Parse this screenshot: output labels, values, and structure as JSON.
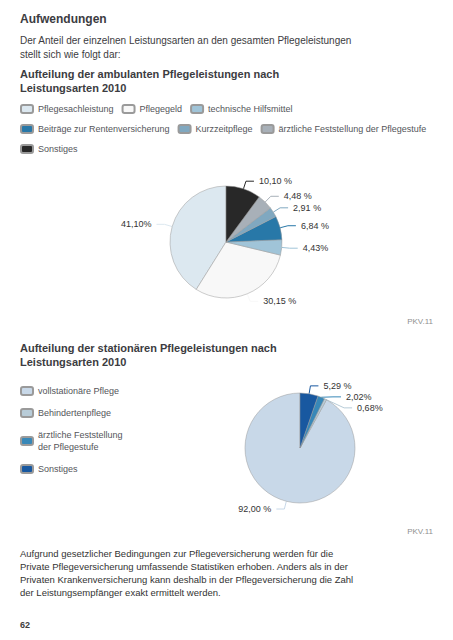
{
  "title": "Aufwendungen",
  "subtitle": "Der Anteil der einzelnen Leistungsarten an den gesamten Pflegeleistungen\nstellt sich wie folgt dar:",
  "annotations": [
    "Aufgrund gesetzlicher Bedingungen zur Pflegeversicherung werden für die\nPrivate Pflegeversicherung umfassende Statistiken erhoben. Anders als in der\nPrivaten Krankenversicherung kann deshalb in der Pflegeversicherung die Zahl\nder Leistungsempfänger exakt ermittelt werden.",
    "62"
  ],
  "chart_data": [
    {
      "type": "pie",
      "title": "Aufteilung der ambulanten Pflegeleistungen nach\nLeistungsarten 2010",
      "categories": [
        "Pflegesachleistung",
        "Pflegegeld",
        "technische Hilfsmittel",
        "Beiträge zur Rentenversicherung",
        "Kurzzeitpflege",
        "ärztliche Feststellung der Pflegestufe",
        "Sonstiges"
      ],
      "values": [
        41.1,
        30.15,
        4.43,
        6.84,
        2.91,
        4.48,
        10.1
      ],
      "value_labels": [
        "41,10%",
        "30,15 %",
        "4,43%",
        "6,84 %",
        "2,91 %",
        "4,48 %",
        "10,10 %"
      ],
      "colors": [
        "#dce8f0",
        "#f8f8f8",
        "#a0c4d8",
        "#2878a8",
        "#80a8c0",
        "#a8b0b8",
        "#282828"
      ],
      "data_labels": true,
      "legend": "top",
      "annotations": [
        "PKV.11"
      ]
    },
    {
      "type": "pie",
      "title": "Aufteilung der stationären Pflegeleistungen nach\nLeistungsarten 2010",
      "categories": [
        "vollstationäre Pflege",
        "Behindertenpflege",
        "ärztliche Feststellung\nder Pflegestufe",
        "Sonstiges"
      ],
      "values": [
        92.0,
        0.68,
        2.02,
        5.29
      ],
      "value_labels": [
        "92,00 %",
        "0,68%",
        "2,02%",
        "5,29 %"
      ],
      "colors": [
        "#c8d8e8",
        "#b8ccd8",
        "#3888b8",
        "#1858a0"
      ],
      "data_labels": true,
      "legend": "left",
      "annotations": [
        "PKV.11"
      ]
    }
  ]
}
